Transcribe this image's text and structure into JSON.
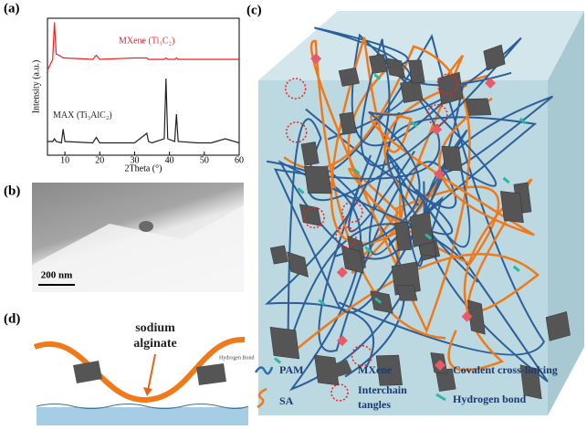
{
  "chart_data": {
    "type": "line",
    "panel_label": "(a)",
    "xlabel": "2Theta (°)",
    "ylabel": "Intensity (a.u.)",
    "x": [
      5,
      6.5,
      7,
      7.5,
      9,
      9.5,
      10,
      18,
      19,
      20,
      30,
      33.5,
      34,
      35,
      38.5,
      39,
      39.5,
      41.5,
      42,
      42.5,
      48,
      52,
      56,
      60
    ],
    "series": [
      {
        "name": "MXene (Ti₃C₂)",
        "color": "#ee2222",
        "values": [
          62,
          70,
          97,
          74,
          72,
          71,
          71,
          70,
          73,
          70,
          71,
          71,
          70,
          70,
          70,
          71,
          70,
          70,
          71,
          70,
          70,
          70,
          70,
          70
        ]
      },
      {
        "name": "MAX (Ti₃AlC₂)",
        "color": "#222222",
        "values": [
          10,
          10,
          12,
          10,
          9,
          19,
          10,
          9,
          13,
          9,
          9,
          16,
          10,
          9,
          12,
          56,
          12,
          10,
          30,
          10,
          9,
          9,
          12,
          9
        ]
      }
    ],
    "xlim": [
      5,
      60
    ],
    "xticks": [
      10,
      20,
      30,
      40,
      50,
      60
    ],
    "ylim": [
      0,
      100
    ]
  },
  "figure": {
    "panel_b": {
      "label": "(b)",
      "scale_bar": "200 nm"
    },
    "panel_c": {
      "label": "(c)"
    },
    "panel_d": {
      "label": "(d)",
      "annotation": [
        "sodium",
        "alginate"
      ],
      "bond_note": "Hydrogen Bond"
    },
    "legend": [
      {
        "label": "PAM"
      },
      {
        "label": "MXene"
      },
      {
        "label": "Covalent cross-linking"
      },
      {
        "label": "SA"
      },
      {
        "label": [
          "Interchain",
          "tangles"
        ]
      },
      {
        "label": "Hydrogen bond"
      }
    ]
  }
}
